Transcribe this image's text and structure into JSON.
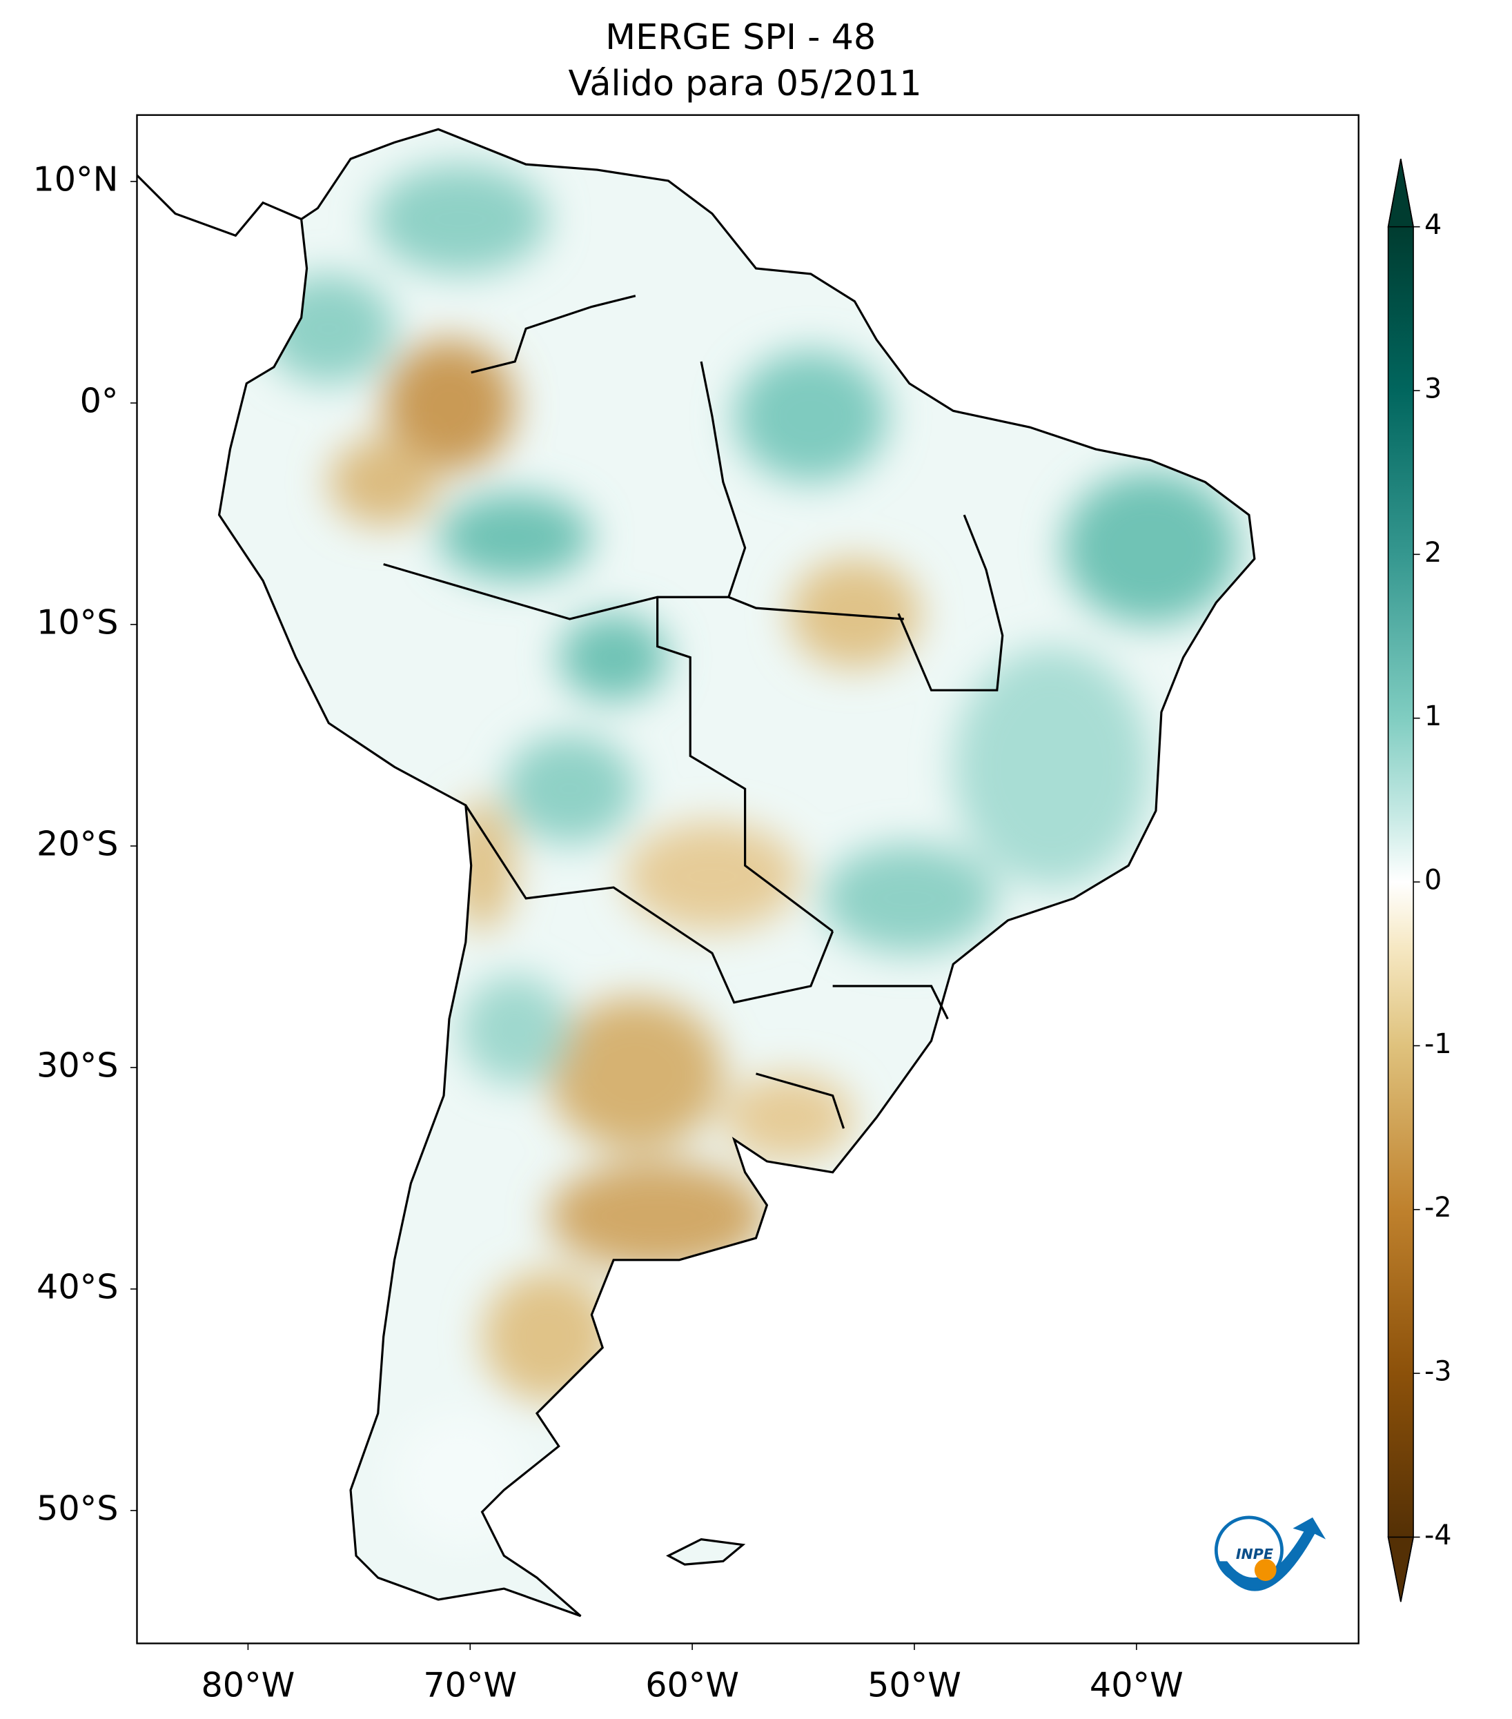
{
  "map": {
    "title": "MERGE   SPI - 48",
    "subtitle": "Válido para 05/2011",
    "xlim": [
      -85,
      -30
    ],
    "ylim": [
      -56,
      13
    ],
    "xticks": [
      {
        "value": -80,
        "label": "80°W"
      },
      {
        "value": -70,
        "label": "70°W"
      },
      {
        "value": -60,
        "label": "60°W"
      },
      {
        "value": -50,
        "label": "50°W"
      },
      {
        "value": -40,
        "label": "40°W"
      }
    ],
    "yticks": [
      {
        "value": 10,
        "label": "10°N"
      },
      {
        "value": 0,
        "label": "0°"
      },
      {
        "value": -10,
        "label": "10°S"
      },
      {
        "value": -20,
        "label": "20°S"
      },
      {
        "value": -30,
        "label": "30°S"
      },
      {
        "value": -40,
        "label": "40°S"
      },
      {
        "value": -50,
        "label": "50°S"
      }
    ],
    "colorbar": {
      "lim": [
        -4,
        4
      ],
      "ticks": [
        -4,
        -3,
        -2,
        -1,
        0,
        1,
        2,
        3,
        4
      ]
    },
    "logo": "INPE"
  }
}
